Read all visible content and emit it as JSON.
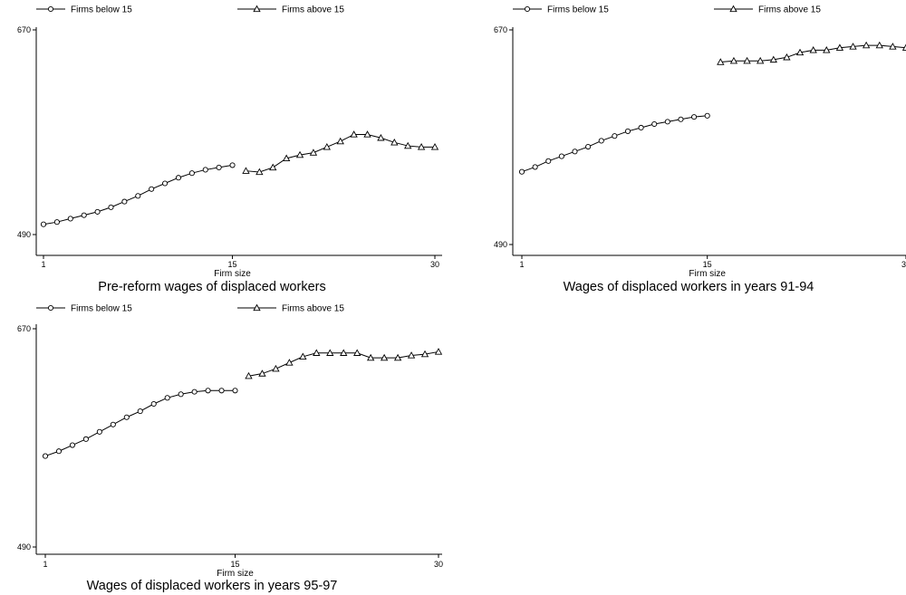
{
  "colors": {
    "line": "#000000",
    "marker_fill": "#ffffff",
    "background": "#ffffff"
  },
  "chart_data": [
    {
      "type": "line",
      "title": "Pre-reform wages of displaced workers",
      "xlabel": "Firm size",
      "ylabel": "",
      "xlim": [
        1,
        30
      ],
      "ylim": [
        490,
        670
      ],
      "xticks": [
        "1",
        "15",
        "30"
      ],
      "yticks": [
        "490",
        "670"
      ],
      "legend_placement": "top",
      "grid": false,
      "series": [
        {
          "name": "Firms below 15",
          "marker": "circle",
          "x": [
            1,
            2,
            3,
            4,
            5,
            6,
            7,
            8,
            9,
            10,
            11,
            12,
            13,
            14,
            15
          ],
          "y": [
            499,
            501,
            504,
            507,
            510,
            514,
            519,
            524,
            530,
            535,
            540,
            544,
            547,
            549,
            551
          ]
        },
        {
          "name": "Firms above 15",
          "marker": "triangle",
          "x": [
            16,
            17,
            18,
            19,
            20,
            21,
            22,
            23,
            24,
            25,
            26,
            27,
            28,
            29,
            30
          ],
          "y": [
            546,
            545,
            549,
            557,
            560,
            562,
            567,
            572,
            578,
            578,
            575,
            571,
            568,
            567,
            567
          ]
        }
      ]
    },
    {
      "type": "line",
      "title": "Wages of displaced workers in years 91-94",
      "xlabel": "Firm size",
      "ylabel": "",
      "xlim": [
        1,
        30
      ],
      "ylim": [
        490,
        670
      ],
      "xticks": [
        "1",
        "15",
        "30"
      ],
      "yticks": [
        "490",
        "670"
      ],
      "legend_placement": "top",
      "grid": false,
      "series": [
        {
          "name": "Firms below 15",
          "marker": "circle",
          "x": [
            1,
            2,
            3,
            4,
            5,
            6,
            7,
            8,
            9,
            10,
            11,
            12,
            13,
            14,
            15
          ],
          "y": [
            551,
            555,
            560,
            564,
            568,
            572,
            577,
            581,
            585,
            588,
            591,
            593,
            595,
            597,
            598
          ]
        },
        {
          "name": "Firms above 15",
          "marker": "triangle",
          "x": [
            16,
            17,
            18,
            19,
            20,
            21,
            22,
            23,
            24,
            25,
            26,
            27,
            28,
            29,
            30
          ],
          "y": [
            643,
            644,
            644,
            644,
            645,
            647,
            651,
            653,
            653,
            655,
            656,
            657,
            657,
            656,
            655
          ]
        }
      ]
    },
    {
      "type": "line",
      "title": "Wages of displaced workers in years 95-97",
      "xlabel": "Firm size",
      "ylabel": "",
      "xlim": [
        1,
        30
      ],
      "ylim": [
        490,
        670
      ],
      "xticks": [
        "1",
        "15",
        "30"
      ],
      "yticks": [
        "490",
        "670"
      ],
      "legend_placement": "top",
      "grid": false,
      "series": [
        {
          "name": "Firms below 15",
          "marker": "circle",
          "x": [
            1,
            2,
            3,
            4,
            5,
            6,
            7,
            8,
            9,
            10,
            11,
            12,
            13,
            14,
            15
          ],
          "y": [
            565,
            569,
            574,
            579,
            585,
            591,
            597,
            602,
            608,
            613,
            616,
            618,
            619,
            619,
            619
          ]
        },
        {
          "name": "Firms above 15",
          "marker": "triangle",
          "x": [
            16,
            17,
            18,
            19,
            20,
            21,
            22,
            23,
            24,
            25,
            26,
            27,
            28,
            29,
            30
          ],
          "y": [
            631,
            633,
            637,
            642,
            647,
            650,
            650,
            650,
            650,
            646,
            646,
            646,
            648,
            649,
            651
          ]
        }
      ]
    }
  ]
}
